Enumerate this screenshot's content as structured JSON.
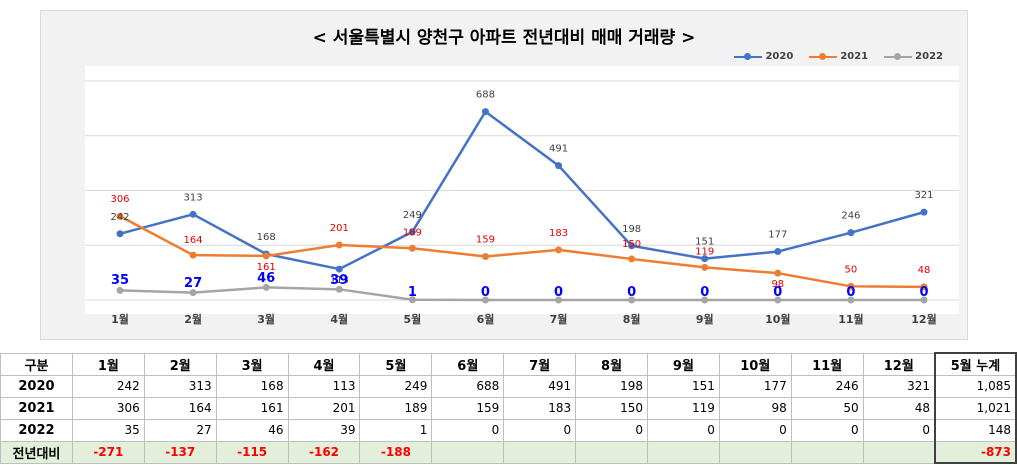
{
  "chart_data": {
    "type": "line",
    "title": "< 서울특별시 양천구  아파트 전년대비 매매 거래량 >",
    "categories": [
      "1월",
      "2월",
      "3월",
      "4월",
      "5월",
      "6월",
      "7월",
      "8월",
      "9월",
      "10월",
      "11월",
      "12월"
    ],
    "series": [
      {
        "name": "2020",
        "color": "#4472c4",
        "values": [
          242,
          313,
          168,
          113,
          249,
          688,
          491,
          198,
          151,
          177,
          246,
          321
        ]
      },
      {
        "name": "2021",
        "color": "#ed7d31",
        "values": [
          306,
          164,
          161,
          201,
          189,
          159,
          183,
          150,
          119,
          98,
          50,
          48
        ]
      },
      {
        "name": "2022",
        "color": "#a5a5a5",
        "values": [
          35,
          27,
          46,
          39,
          1,
          0,
          0,
          0,
          0,
          0,
          0,
          0
        ]
      }
    ],
    "ylim": [
      0,
      800
    ],
    "grid": true,
    "legend": "top-right"
  },
  "table": {
    "header": [
      "구분",
      "1월",
      "2월",
      "3월",
      "4월",
      "5월",
      "6월",
      "7월",
      "8월",
      "9월",
      "10월",
      "11월",
      "12월",
      "5월 누계"
    ],
    "rows": [
      {
        "label": "2020",
        "cells": [
          "242",
          "313",
          "168",
          "113",
          "249",
          "688",
          "491",
          "198",
          "151",
          "177",
          "246",
          "321",
          "1,085"
        ]
      },
      {
        "label": "2021",
        "cells": [
          "306",
          "164",
          "161",
          "201",
          "189",
          "159",
          "183",
          "150",
          "119",
          "98",
          "50",
          "48",
          "1,021"
        ]
      },
      {
        "label": "2022",
        "cells": [
          "35",
          "27",
          "46",
          "39",
          "1",
          "0",
          "0",
          "0",
          "0",
          "0",
          "0",
          "0",
          "148"
        ]
      },
      {
        "label": "전년대비",
        "cells": [
          "-271",
          "-137",
          "-115",
          "-162",
          "-188",
          "",
          "",
          "",
          "",
          "",
          "",
          "",
          "-873"
        ]
      }
    ]
  }
}
